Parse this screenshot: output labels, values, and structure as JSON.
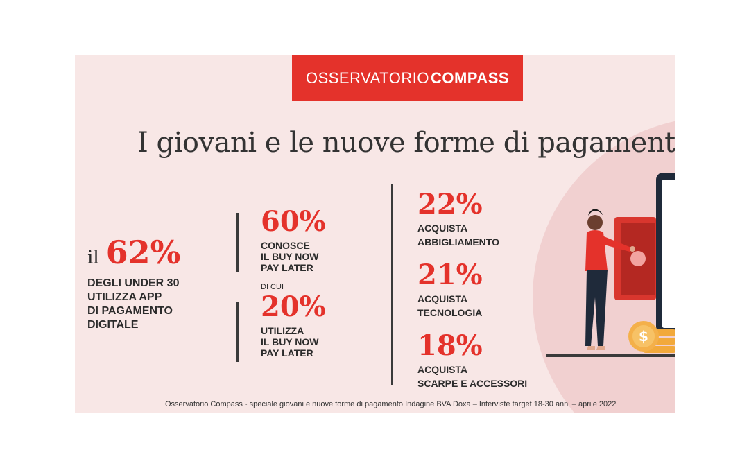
{
  "header": {
    "brand_light": "OSSERVATORIO",
    "brand_bold": "COMPASS"
  },
  "title": "I giovani e le nuove forme di pagamento",
  "stats": {
    "main": {
      "prefix": "il",
      "value": "62%",
      "caption_lines": [
        "DEGLI UNDER 30",
        "UTILIZZA APP",
        "DI PAGAMENTO",
        "DIGITALE"
      ]
    },
    "bnpl_know": {
      "value": "60%",
      "caption_lines": [
        "CONOSCE",
        "IL BUY NOW",
        "PAY LATER"
      ]
    },
    "of_which": "DI CUI",
    "bnpl_use": {
      "value": "20%",
      "caption_lines": [
        "UTILIZZA",
        "IL BUY NOW",
        "PAY LATER"
      ]
    },
    "clothing": {
      "value": "22%",
      "caption_lines": [
        "ACQUISTA",
        "ABBIGLIAMENTO"
      ]
    },
    "tech": {
      "value": "21%",
      "caption_lines": [
        "ACQUISTA",
        "TECNOLOGIA"
      ]
    },
    "shoes": {
      "value": "18%",
      "caption_lines": [
        "ACQUISTA",
        "SCARPE E ACCESSORI"
      ]
    }
  },
  "footer": "Osservatorio Compass - speciale giovani e nuove forme di pagamento Indagine BVA Doxa – Interviste target 18-30 anni – aprile 2022",
  "illustration": {
    "icon": "person-paying-smartphone-illustration",
    "coin_icon": "dollar-coin-icon"
  },
  "colors": {
    "accent": "#e4322b",
    "background": "#f8e7e6",
    "text": "#2b2b2b"
  }
}
